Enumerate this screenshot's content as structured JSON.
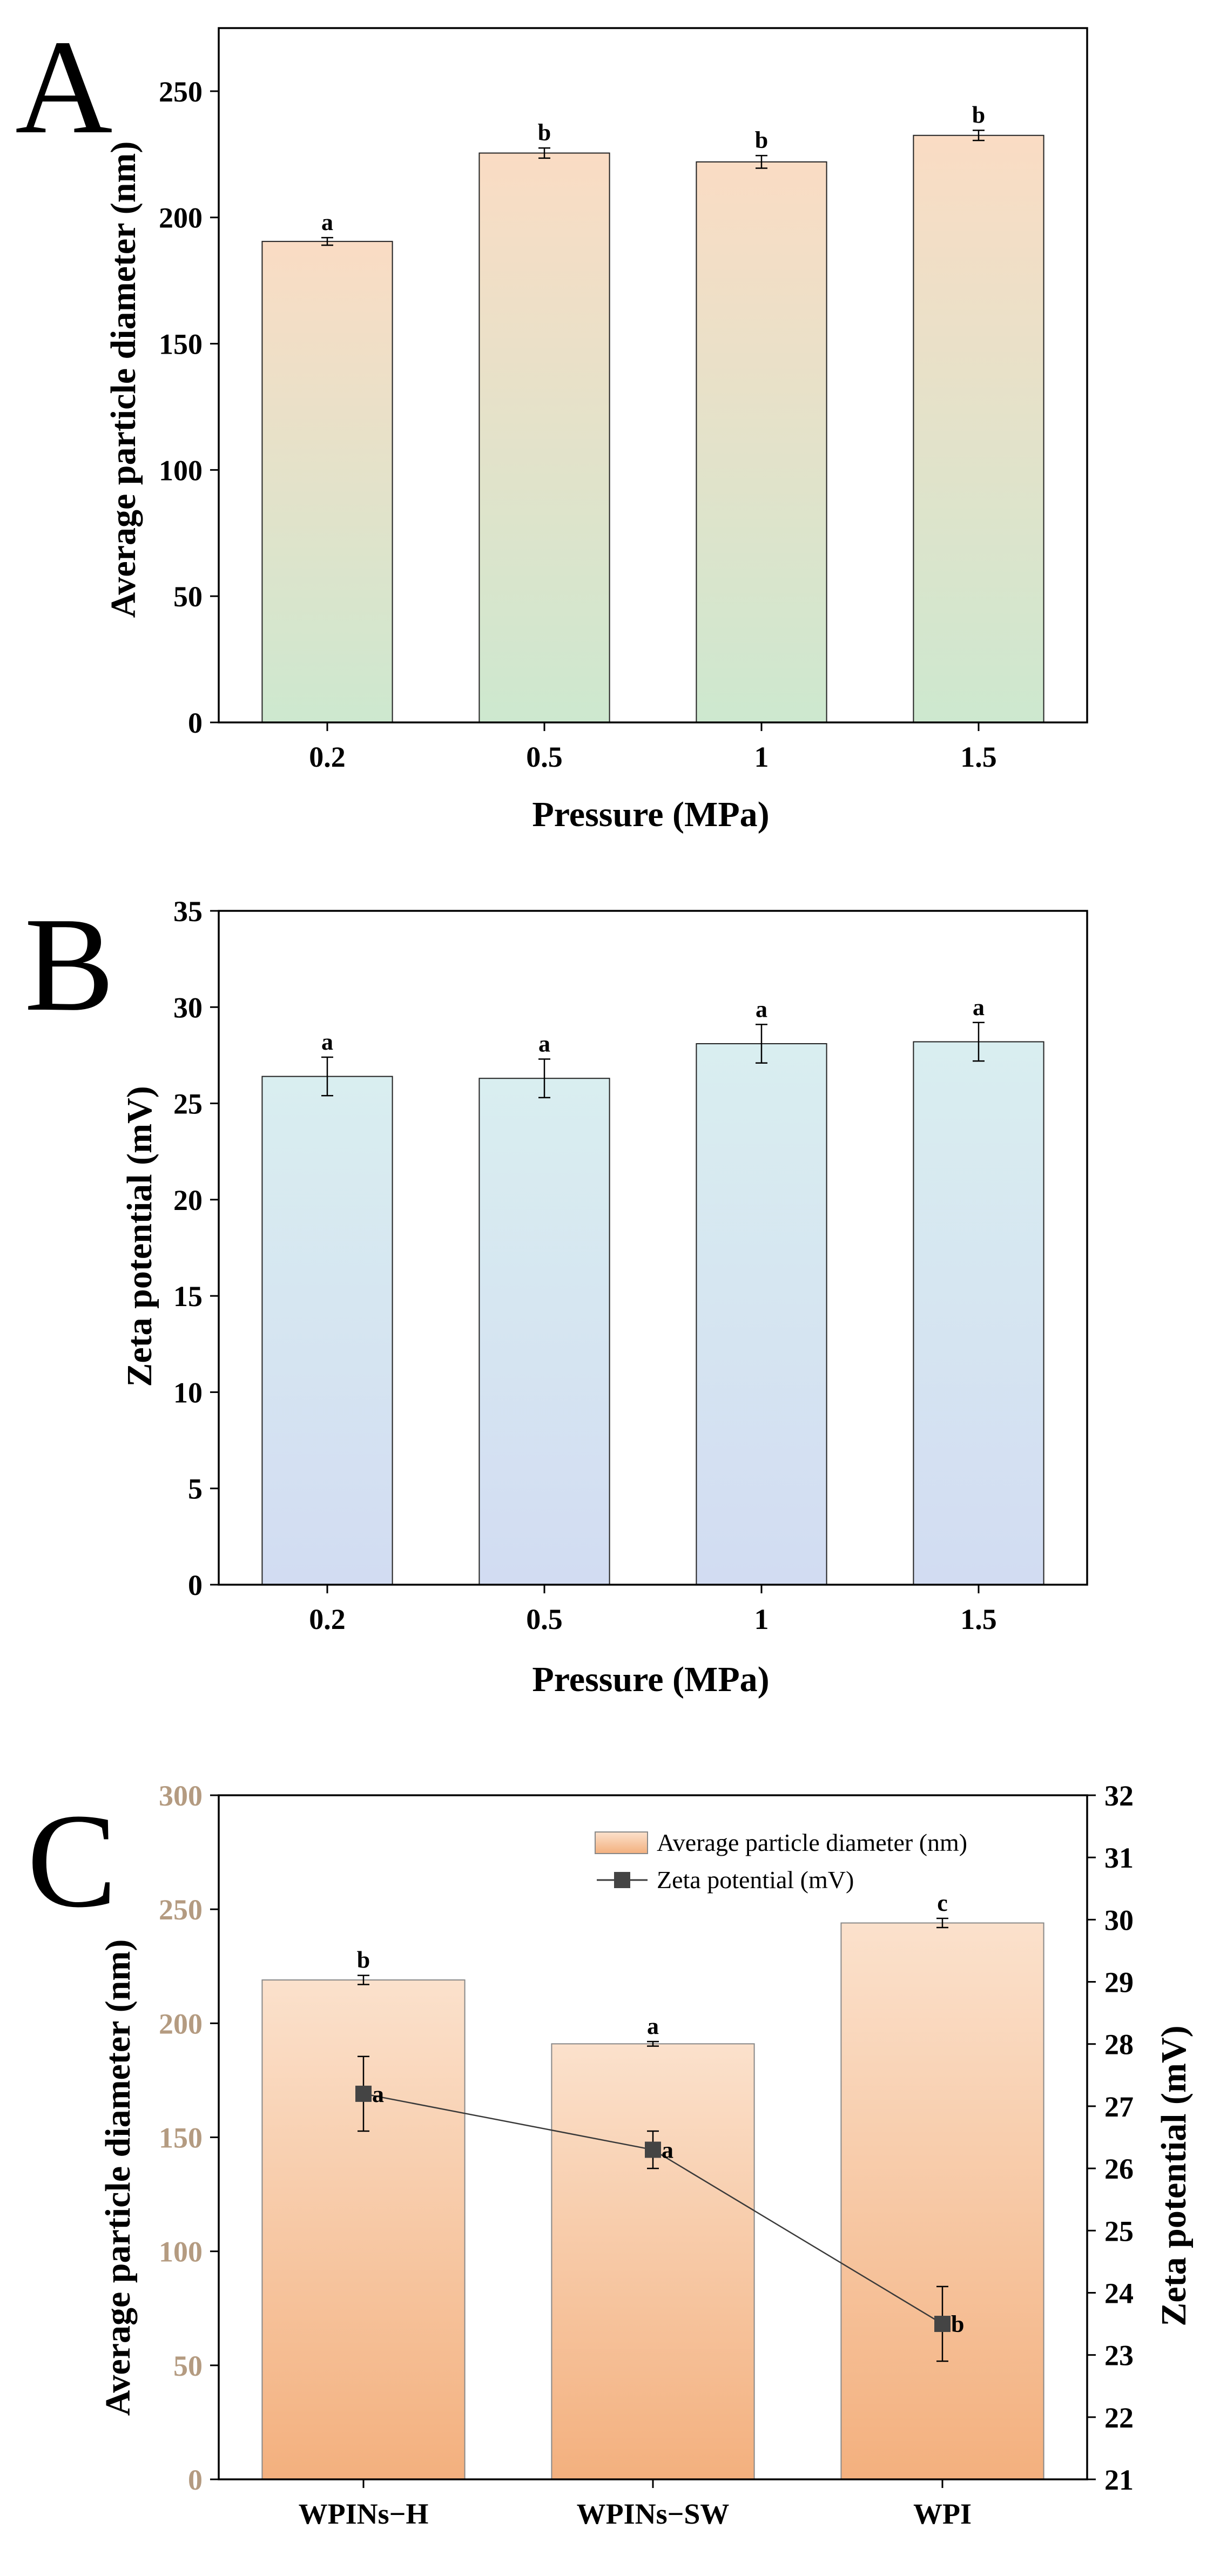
{
  "chart_data": [
    {
      "panel": "A",
      "type": "bar",
      "xlabel": "Pressure (MPa)",
      "ylabel": "Average particle diameter (nm)",
      "categories": [
        "0.2",
        "0.5",
        "1",
        "1.5"
      ],
      "values": [
        190.5,
        225.5,
        222.0,
        232.5
      ],
      "errors": [
        1.5,
        2.0,
        2.5,
        2.0
      ],
      "significance": [
        "a",
        "b",
        "b",
        "b"
      ],
      "ylim": [
        0,
        275
      ],
      "yticks": [
        "0",
        "50",
        "100",
        "150",
        "200",
        "250"
      ],
      "gradient": {
        "top": "#fadcc4",
        "bottom": "#cde8cf"
      }
    },
    {
      "panel": "B",
      "type": "bar",
      "xlabel": "Pressure (MPa)",
      "ylabel": "Zeta potential (mV)",
      "categories": [
        "0.2",
        "0.5",
        "1",
        "1.5"
      ],
      "values": [
        26.4,
        26.3,
        28.1,
        28.2
      ],
      "errors": [
        1.0,
        1.0,
        1.0,
        1.0
      ],
      "significance": [
        "a",
        "a",
        "a",
        "a"
      ],
      "ylim": [
        0,
        35
      ],
      "yticks": [
        "0",
        "5",
        "10",
        "15",
        "20",
        "25",
        "30",
        "35"
      ],
      "gradient": {
        "top": "#d9eef0",
        "bottom": "#d2dcf2"
      }
    },
    {
      "panel": "C",
      "type": "bar+line",
      "categories": [
        "WPINs−H",
        "WPINs−SW",
        "WPI"
      ],
      "series": [
        {
          "name": "Average particle diameter (nm)",
          "type": "bar",
          "axis": "left",
          "values": [
            219,
            191,
            244
          ],
          "errors": [
            2,
            1,
            2
          ],
          "significance": [
            "b",
            "a",
            "c"
          ]
        },
        {
          "name": "Zeta potential (mV)",
          "type": "line",
          "axis": "right",
          "values": [
            27.2,
            26.3,
            23.5
          ],
          "errors": [
            0.6,
            0.3,
            0.6
          ],
          "significance": [
            "a",
            "a",
            "b"
          ]
        }
      ],
      "ylabel": "Average particle diameter (nm)",
      "ylabel_right": "Zeta potential (mV)",
      "ylim": [
        0,
        300
      ],
      "ylim_right": [
        21,
        32
      ],
      "yticks": [
        "0",
        "50",
        "100",
        "150",
        "200",
        "250",
        "300"
      ],
      "yticks_right": [
        "21",
        "22",
        "23",
        "24",
        "25",
        "26",
        "27",
        "28",
        "29",
        "30",
        "31",
        "32"
      ],
      "legend_position": "top-right",
      "gradient": {
        "top": "#fbe1cc",
        "bottom": "#f3b07e"
      },
      "colors": {
        "left_axis": "#b49b81",
        "line": "#3a3a3a",
        "marker": "#444444"
      }
    }
  ],
  "panel_letters": [
    "A",
    "B",
    "C"
  ]
}
